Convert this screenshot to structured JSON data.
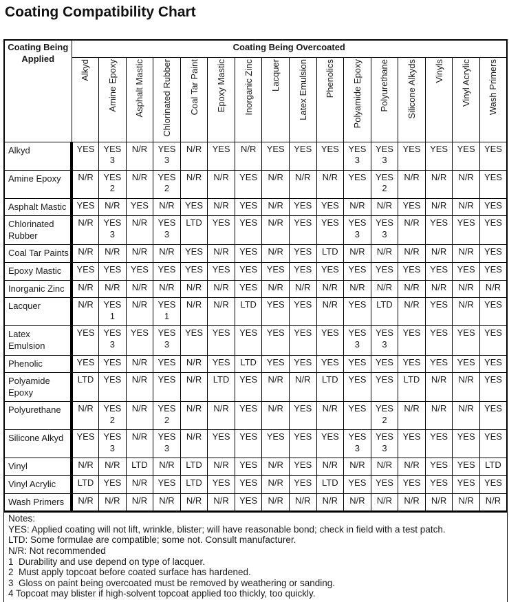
{
  "title": "Coating Compatibility Chart",
  "table": {
    "corner_label": "Coating Being Applied",
    "column_group_label": "Coating Being Overcoated",
    "columns": [
      "Alkyd",
      "Amine Epoxy",
      "Asphalt Mastic",
      "Chlorinated Rubber",
      "Coal Tar Paint",
      "Epoxy Mastic",
      "Inorganic Zinc",
      "Lacquer",
      "Latex Emulsion",
      "Phenolics",
      "Polyamide Epoxy",
      "Polyurethane",
      "Silicone Alkyds",
      "Vinyls",
      "Vinyl Acrylic",
      "Wash Primers"
    ],
    "rows": [
      {
        "label": "Alkyd",
        "cells": [
          "YES",
          "YES 3",
          "N/R",
          "YES 3",
          "N/R",
          "YES",
          "N/R",
          "YES",
          "YES",
          "YES",
          "YES 3",
          "YES 3",
          "YES",
          "YES",
          "YES",
          "YES"
        ]
      },
      {
        "label": "Amine Epoxy",
        "cells": [
          "N/R",
          "YES 2",
          "N/R",
          "YES 2",
          "N/R",
          "N/R",
          "YES",
          "N/R",
          "N/R",
          "N/R",
          "YES",
          "YES 2",
          "N/R",
          "N/R",
          "N/R",
          "YES"
        ]
      },
      {
        "label": "Asphalt Mastic",
        "cells": [
          "YES",
          "N/R",
          "YES",
          "N/R",
          "YES",
          "N/R",
          "YES",
          "N/R",
          "YES",
          "YES",
          "N/R",
          "N/R",
          "YES",
          "N/R",
          "N/R",
          "YES"
        ]
      },
      {
        "label": "Chlorinated Rubber",
        "cells": [
          "N/R",
          "YES 3",
          "N/R",
          "YES 3",
          "LTD",
          "YES",
          "YES",
          "N/R",
          "YES",
          "YES",
          "YES 3",
          "YES 3",
          "N/R",
          "YES",
          "YES",
          "YES"
        ]
      },
      {
        "label": "Coal Tar Paints",
        "cells": [
          "N/R",
          "N/R",
          "N/R",
          "N/R",
          "YES",
          "N/R",
          "YES",
          "N/R",
          "YES",
          "LTD",
          "N/R",
          "N/R",
          "N/R",
          "N/R",
          "N/R",
          "YES"
        ]
      },
      {
        "label": "Epoxy Mastic",
        "cells": [
          "YES",
          "YES",
          "YES",
          "YES",
          "YES",
          "YES",
          "YES",
          "YES",
          "YES",
          "YES",
          "YES",
          "YES",
          "YES",
          "YES",
          "YES",
          "YES"
        ]
      },
      {
        "label": "Inorganic Zinc",
        "cells": [
          "N/R",
          "N/R",
          "N/R",
          "N/R",
          "N/R",
          "N/R",
          "YES",
          "N/R",
          "N/R",
          "N/R",
          "N/R",
          "N/R",
          "N/R",
          "N/R",
          "N/R",
          "N/R"
        ]
      },
      {
        "label": "Lacquer",
        "cells": [
          "N/R",
          "YES 1",
          "N/R",
          "YES 1",
          "N/R",
          "N/R",
          "LTD",
          "YES",
          "YES",
          "N/R",
          "YES",
          "LTD",
          "N/R",
          "YES",
          "N/R",
          "YES"
        ]
      },
      {
        "label": "Latex Emulsion",
        "cells": [
          "YES",
          "YES 3",
          "YES",
          "YES 3",
          "YES",
          "YES",
          "YES",
          "YES",
          "YES",
          "YES",
          "YES 3",
          "YES 3",
          "YES",
          "YES",
          "YES",
          "YES"
        ]
      },
      {
        "label": "Phenolic",
        "cells": [
          "YES",
          "YES",
          "N/R",
          "YES",
          "N/R",
          "YES",
          "LTD",
          "YES",
          "YES",
          "YES",
          "YES",
          "YES",
          "YES",
          "YES",
          "YES",
          "YES"
        ]
      },
      {
        "label": "Polyamide Epoxy",
        "cells": [
          "LTD",
          "YES",
          "N/R",
          "YES",
          "N/R",
          "LTD",
          "YES",
          "N/R",
          "N/R",
          "LTD",
          "YES",
          "YES",
          "LTD",
          "N/R",
          "N/R",
          "YES"
        ]
      },
      {
        "label": "Polyurethane",
        "cells": [
          "N/R",
          "YES 2",
          "N/R",
          "YES 2",
          "N/R",
          "N/R",
          "YES",
          "N/R",
          "YES",
          "N/R",
          "YES",
          "YES 2",
          "N/R",
          "N/R",
          "N/R",
          "YES"
        ]
      },
      {
        "label": "Silicone Alkyd",
        "cells": [
          "YES",
          "YES 3",
          "N/R",
          "YES 3",
          "N/R",
          "YES",
          "YES",
          "YES",
          "YES",
          "YES",
          "YES 3",
          "YES 3",
          "YES",
          "YES",
          "YES",
          "YES"
        ]
      },
      {
        "label": "Vinyl",
        "cells": [
          "N/R",
          "N/R",
          "LTD",
          "N/R",
          "LTD",
          "N/R",
          "YES",
          "N/R",
          "YES",
          "N/R",
          "N/R",
          "N/R",
          "N/R",
          "YES",
          "YES",
          "LTD"
        ]
      },
      {
        "label": "Vinyl Acrylic",
        "cells": [
          "LTD",
          "YES",
          "N/R",
          "YES",
          "LTD",
          "YES",
          "YES",
          "N/R",
          "YES",
          "LTD",
          "YES",
          "YES",
          "YES",
          "YES",
          "YES",
          "YES"
        ]
      },
      {
        "label": "Wash Primers",
        "cells": [
          "N/R",
          "N/R",
          "N/R",
          "N/R",
          "N/R",
          "N/R",
          "YES",
          "N/R",
          "N/R",
          "N/R",
          "N/R",
          "N/R",
          "N/R",
          "N/R",
          "N/R",
          "N/R"
        ]
      }
    ]
  },
  "notes": {
    "heading": "Notes:",
    "lines": [
      "YES: Applied coating will not lift, wrinkle, blister; will have reasonable bond; check in field with a test patch.",
      "LTD: Some formulae are compatible; some not. Consult manufacturer.",
      "N/R: Not recommended",
      "1  Durability and use depend on type of lacquer.",
      "2  Must apply topcoat before coated surface has hardened.",
      "3  Gloss on paint being overcoated must be removed by weathering or sanding.",
      "4 Topcoat may blister if high-solvent topcoat applied too thickly, too quickly."
    ]
  },
  "colors": {
    "text": "#1a1a1a",
    "border": "#000000",
    "background": "#ffffff"
  }
}
